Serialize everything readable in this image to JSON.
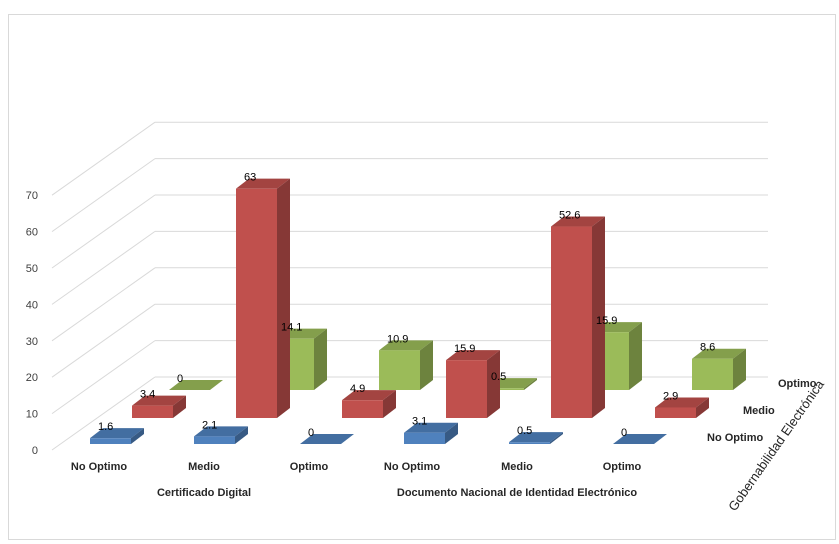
{
  "chart_data": {
    "type": "bar",
    "subtype": "3d-column",
    "title": "",
    "groups": [
      {
        "label": "Certificado Digital",
        "categories": [
          "No Optimo",
          "Medio",
          "Optimo"
        ]
      },
      {
        "label": "Documento Nacional de Identidad Electrónico",
        "categories": [
          "No Optimo",
          "Medio",
          "Optimo"
        ]
      }
    ],
    "categories": [
      "No Optimo",
      "Medio",
      "Optimo",
      "No Optimo",
      "Medio",
      "Optimo"
    ],
    "series": [
      {
        "name": "No Optimo",
        "color": "#4f81bd",
        "values": [
          1.6,
          2.1,
          0,
          3.1,
          0.5,
          0
        ]
      },
      {
        "name": "Medio",
        "color": "#c0504d",
        "values": [
          3.4,
          63,
          4.9,
          15.9,
          52.6,
          2.9
        ]
      },
      {
        "name": "Optimo",
        "color": "#9bbb59",
        "values": [
          0,
          14.1,
          10.9,
          0.5,
          15.9,
          8.6
        ]
      }
    ],
    "depth_axis_title": "Gobernabilidad Electrónica",
    "ylim": [
      0,
      70
    ],
    "yticks": [
      0,
      10,
      20,
      30,
      40,
      50,
      60,
      70
    ],
    "grid": true,
    "legend": "none"
  }
}
